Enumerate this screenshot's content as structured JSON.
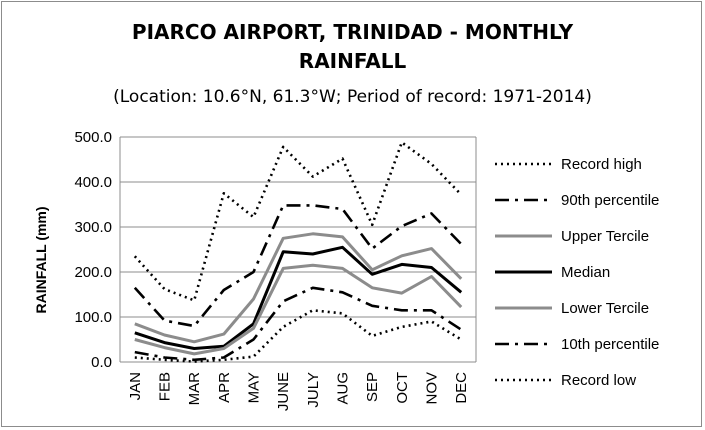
{
  "chart_data": {
    "type": "line",
    "title_line1": "PIARCO AIRPORT, TRINIDAD - MONTHLY",
    "title_line2": "RAINFALL",
    "subtitle": "(Location: 10.6°N, 61.3°W; Period of record: 1971-2014)",
    "ylabel": "RAINFALL (mm)",
    "xlabel": "",
    "ylim": [
      0,
      500
    ],
    "yticks": [
      "0.0",
      "100.0",
      "200.0",
      "300.0",
      "400.0",
      "500.0"
    ],
    "grid": true,
    "legend_position": "right",
    "categories": [
      "JAN",
      "FEB",
      "MAR",
      "APR",
      "MAY",
      "JUNE",
      "JULY",
      "AUG",
      "SEP",
      "OCT",
      "NOV",
      "DEC"
    ],
    "series": [
      {
        "name": "Record high",
        "color": "#000000",
        "style": "dotted",
        "values": [
          235,
          162,
          137,
          375,
          322,
          478,
          412,
          452,
          305,
          488,
          440,
          372
        ]
      },
      {
        "name": "90th percentile",
        "color": "#000000",
        "style": "dashdot",
        "values": [
          165,
          92,
          80,
          160,
          200,
          348,
          348,
          340,
          252,
          302,
          330,
          262
        ]
      },
      {
        "name": "Upper Tercile",
        "color": "#8c8c8c",
        "style": "solid",
        "values": [
          85,
          60,
          45,
          62,
          140,
          275,
          285,
          278,
          205,
          236,
          252,
          185
        ]
      },
      {
        "name": "Median",
        "color": "#000000",
        "style": "solid",
        "values": [
          65,
          43,
          30,
          35,
          85,
          245,
          240,
          255,
          195,
          217,
          210,
          155
        ]
      },
      {
        "name": "Lower Tercile",
        "color": "#8c8c8c",
        "style": "solid",
        "values": [
          50,
          32,
          18,
          30,
          75,
          208,
          215,
          208,
          165,
          153,
          190,
          122
        ]
      },
      {
        "name": "10th percentile",
        "color": "#000000",
        "style": "dashdot",
        "values": [
          22,
          10,
          5,
          10,
          50,
          135,
          165,
          155,
          125,
          115,
          115,
          72
        ]
      },
      {
        "name": "Record low",
        "color": "#000000",
        "style": "dotted",
        "values": [
          10,
          5,
          1,
          5,
          12,
          78,
          115,
          108,
          58,
          78,
          90,
          50
        ]
      }
    ]
  }
}
